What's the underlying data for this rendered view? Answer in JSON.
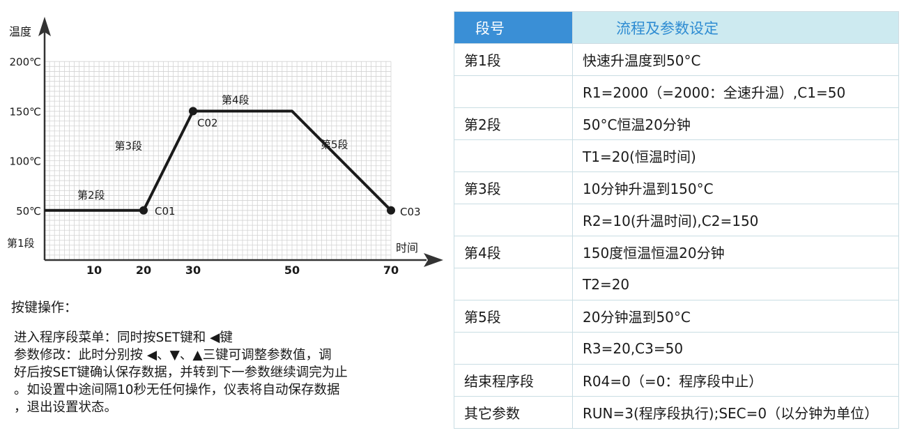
{
  "chart_data": {
    "type": "line",
    "ylabel": "温度",
    "xlabel": "时间",
    "x": [
      0,
      20,
      30,
      50,
      70
    ],
    "y": [
      50,
      50,
      150,
      150,
      50
    ],
    "xlim": [
      0,
      70
    ],
    "ylim": [
      0,
      200
    ],
    "grid": true,
    "x_ticks": [
      {
        "value": 10,
        "label": "10"
      },
      {
        "value": 20,
        "label": "20"
      },
      {
        "value": 30,
        "label": "30"
      },
      {
        "value": 50,
        "label": "50"
      },
      {
        "value": 70,
        "label": "70"
      }
    ],
    "y_ticks": [
      {
        "value": 50,
        "label": "50℃"
      },
      {
        "value": 100,
        "label": "100℃"
      },
      {
        "value": 150,
        "label": "150℃"
      },
      {
        "value": 200,
        "label": "200℃"
      }
    ],
    "point_labels": [
      {
        "x": 20,
        "y": 50,
        "label": "C01"
      },
      {
        "x": 30,
        "y": 150,
        "label": "C02"
      },
      {
        "x": 70,
        "y": 50,
        "label": "C03"
      }
    ],
    "segment_labels": [
      {
        "x": 10,
        "y": 50,
        "label": "第2段"
      },
      {
        "x": 25,
        "y": 100,
        "label": "第3段"
      },
      {
        "x": 40,
        "y": 150,
        "label": "第4段"
      },
      {
        "x": 60,
        "y": 100,
        "label": "第5段"
      }
    ],
    "outside_label": "第1段"
  },
  "keys": {
    "title": "按键操作：",
    "lines": [
      "进入程序段菜单：同时按SET键和 ◀键",
      "参数修改：此时分别按 ◀、▼、▲三键可调整参数值，调",
      "好后按SET键确认保存数据，并转到下一参数继续调完为止",
      "。如设置中途间隔10秒无任何操作，仪表将自动保存数据",
      "，退出设置状态。"
    ]
  },
  "table": {
    "headers": [
      "段号",
      "流程及参数设定"
    ],
    "rows": [
      [
        "第1段",
        "快速升温度到50°C"
      ],
      [
        "",
        "R1=2000（=2000：全速升温）,C1=50"
      ],
      [
        "第2段",
        "50°C恒温20分钟"
      ],
      [
        "",
        "T1=20(恒温时间)"
      ],
      [
        "第3段",
        "10分钟升温到150°C"
      ],
      [
        "",
        "R2=10(升温时间),C2=150"
      ],
      [
        "第4段",
        "150度恒温恒温20分钟"
      ],
      [
        "",
        "T2=20"
      ],
      [
        "第5段",
        "20分钟温到50°C"
      ],
      [
        "",
        "R3=20,C3=50"
      ],
      [
        "结束程序段",
        "R04=0（=0：程序段中止）"
      ],
      [
        "其它参数",
        "RUN=3(程序段执行);SEC=0（以分钟为单位）"
      ]
    ]
  }
}
